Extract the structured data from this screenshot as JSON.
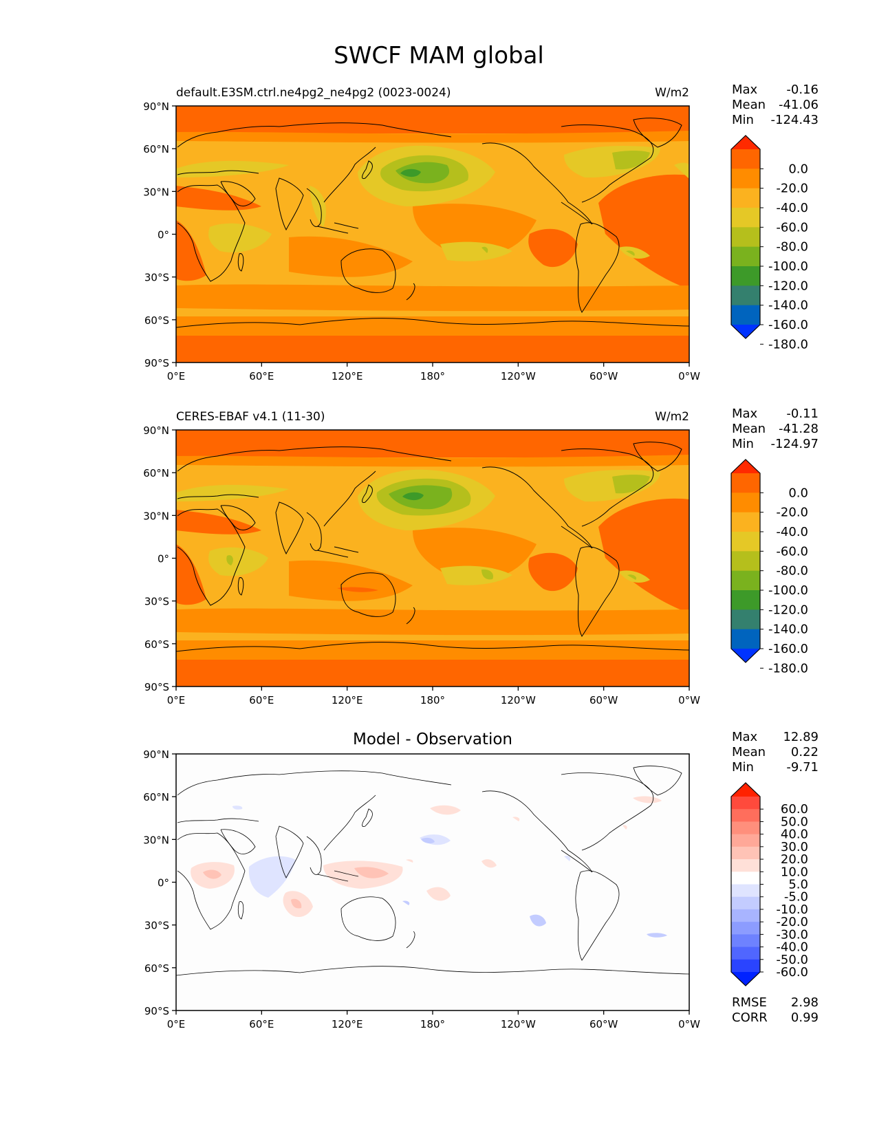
{
  "title": "SWCF MAM global",
  "panels": [
    {
      "id": "model",
      "left_title": "default.E3SM.ctrl.ne4pg2_ne4pg2 (0023-0024)",
      "center_title": "",
      "units": "W/m2",
      "stats": [
        {
          "label": "Max",
          "value": "-0.16"
        },
        {
          "label": "Mean",
          "value": "-41.06"
        },
        {
          "label": "Min",
          "value": "-124.43"
        }
      ],
      "colorbar": {
        "tick_labels": [
          "0.0",
          "-20.0",
          "-40.0",
          "-60.0",
          "-80.0",
          "-100.0",
          "-120.0",
          "-140.0",
          "-160.0",
          "-180.0"
        ],
        "colors": [
          "#ff2a00",
          "#ff6600",
          "#ff8c00",
          "#fbb21f",
          "#e5c826",
          "#b5bf1c",
          "#7ab21e",
          "#3d9a29",
          "#34806e",
          "#0064be",
          "#0033ff"
        ]
      }
    },
    {
      "id": "obs",
      "left_title": "CERES-EBAF v4.1 (11-30)",
      "center_title": "",
      "units": "W/m2",
      "stats": [
        {
          "label": "Max",
          "value": "-0.11"
        },
        {
          "label": "Mean",
          "value": "-41.28"
        },
        {
          "label": "Min",
          "value": "-124.97"
        }
      ],
      "colorbar": {
        "tick_labels": [
          "0.0",
          "-20.0",
          "-40.0",
          "-60.0",
          "-80.0",
          "-100.0",
          "-120.0",
          "-140.0",
          "-160.0",
          "-180.0"
        ],
        "colors": [
          "#ff2a00",
          "#ff6600",
          "#ff8c00",
          "#fbb21f",
          "#e5c826",
          "#b5bf1c",
          "#7ab21e",
          "#3d9a29",
          "#34806e",
          "#0064be",
          "#0033ff"
        ]
      }
    },
    {
      "id": "diff",
      "left_title": "",
      "center_title": "Model - Observation",
      "units": "",
      "stats": [
        {
          "label": "Max",
          "value": "12.89"
        },
        {
          "label": "Mean",
          "value": "0.22"
        },
        {
          "label": "Min",
          "value": "-9.71"
        }
      ],
      "extra_stats": [
        {
          "label": "RMSE",
          "value": "2.98"
        },
        {
          "label": "CORR",
          "value": "0.99"
        }
      ],
      "colorbar": {
        "tick_labels": [
          "60.0",
          "50.0",
          "40.0",
          "30.0",
          "20.0",
          "10.0",
          "5.0",
          "-5.0",
          "-10.0",
          "-20.0",
          "-30.0",
          "-40.0",
          "-50.0",
          "-60.0"
        ],
        "colors": [
          "#ff2200",
          "#ff4a3c",
          "#ff6e5c",
          "#ff8f7c",
          "#ffa898",
          "#ffc3b6",
          "#ffe0d8",
          "#ffffff",
          "#dfe4ff",
          "#c3ccff",
          "#a8b4ff",
          "#8c9cff",
          "#6e82ff",
          "#5066ff",
          "#2a44ff",
          "#0022ff"
        ]
      }
    }
  ],
  "axes": {
    "y_ticks": [
      "90°N",
      "60°N",
      "30°N",
      "0°",
      "30°S",
      "60°S",
      "90°S"
    ],
    "x_ticks": [
      "0°E",
      "60°E",
      "120°E",
      "180°",
      "120°W",
      "60°W",
      "0°W"
    ]
  }
}
